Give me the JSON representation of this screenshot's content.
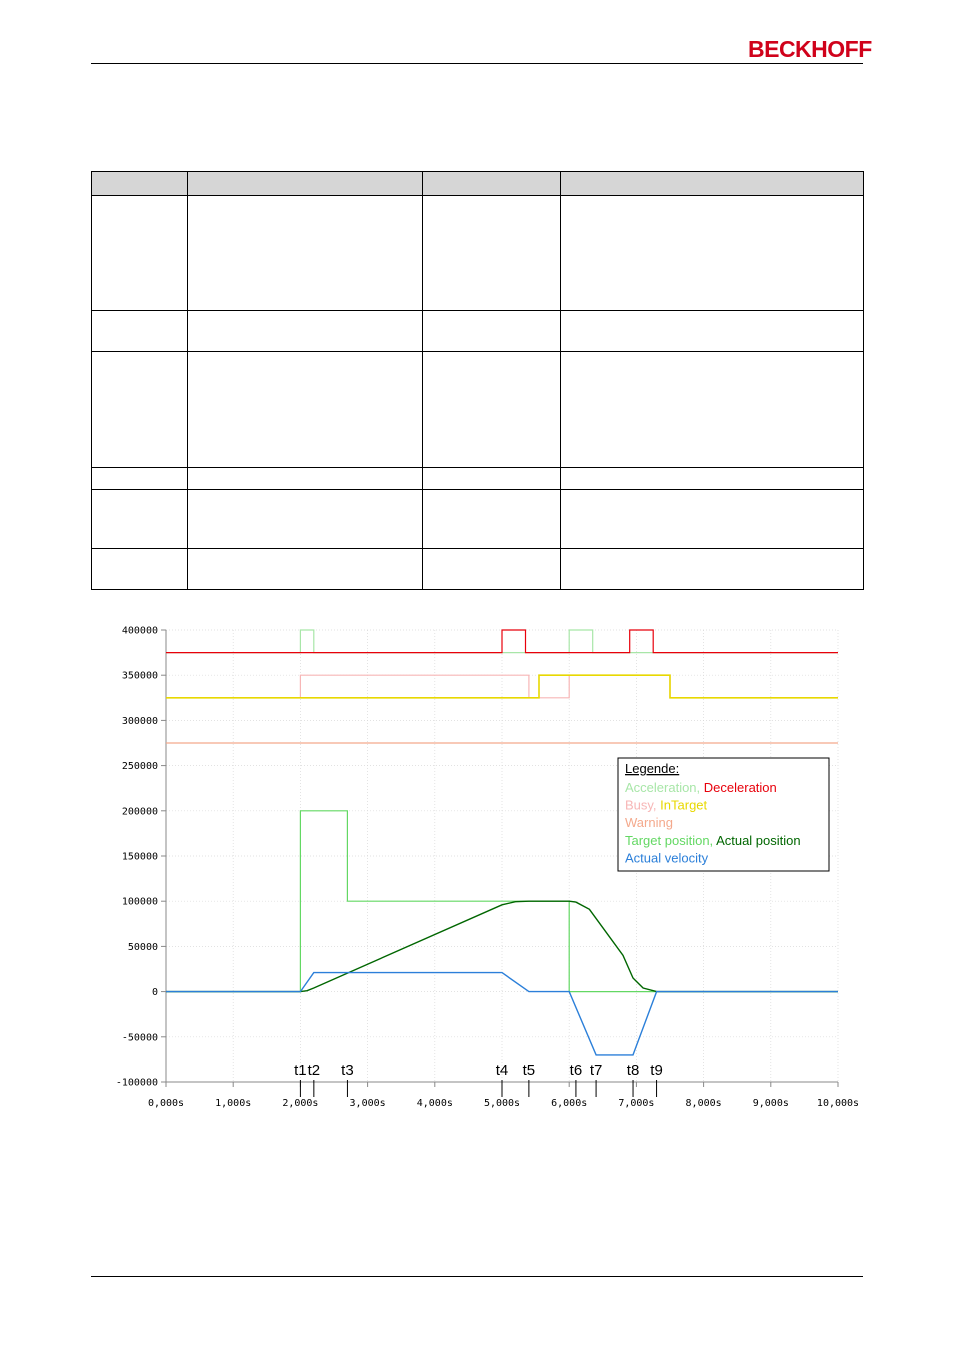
{
  "header": {
    "logo_text": "BECKHOFF",
    "brand_color": "#d0021b"
  },
  "table": {
    "column_count": 4,
    "row_count": 6,
    "header_background": "#d6d6d6"
  },
  "chart_data": {
    "type": "line",
    "xlabel": "",
    "ylabel": "",
    "xlim": [
      0,
      10
    ],
    "ylim": [
      -100000,
      400000
    ],
    "grid": true,
    "x_ticks": [
      0,
      1,
      2,
      3,
      4,
      5,
      6,
      7,
      8,
      9,
      10
    ],
    "x_tick_labels": [
      "0,000s",
      "1,000s",
      "2,000s",
      "3,000s",
      "4,000s",
      "5,000s",
      "6,000s",
      "7,000s",
      "8,000s",
      "9,000s",
      "10,000s"
    ],
    "y_ticks": [
      400000,
      350000,
      300000,
      250000,
      200000,
      150000,
      100000,
      50000,
      0,
      -50000,
      -100000
    ],
    "y_tick_labels": [
      "400000",
      "350000",
      "300000",
      "250000",
      "200000",
      "150000",
      "100000",
      "50000",
      "0",
      "-50000",
      "-100000"
    ],
    "legend": {
      "title": "Legende:",
      "placement": "right",
      "rows": [
        [
          {
            "text": "Acceleration,",
            "color": "#a8e6a8"
          },
          {
            "text": "Deceleration",
            "color": "#e8000b"
          }
        ],
        [
          {
            "text": "Busy,",
            "color": "#f7b6b6"
          },
          {
            "text": "InTarget",
            "color": "#e8d800"
          }
        ],
        [
          {
            "text": "Warning",
            "color": "#f4a98c"
          }
        ],
        [
          {
            "text": "Target position,",
            "color": "#63d863"
          },
          {
            "text": "Actual position",
            "color": "#006600"
          }
        ],
        [
          {
            "text": "Actual velocity",
            "color": "#2b7fd9"
          }
        ]
      ]
    },
    "markers": [
      {
        "label": "t1",
        "x": 2.0
      },
      {
        "label": "t2",
        "x": 2.2
      },
      {
        "label": "t3",
        "x": 2.7
      },
      {
        "label": "t4",
        "x": 5.0
      },
      {
        "label": "t5",
        "x": 5.4
      },
      {
        "label": "t6",
        "x": 6.1
      },
      {
        "label": "t7",
        "x": 6.4
      },
      {
        "label": "t8",
        "x": 6.95
      },
      {
        "label": "t9",
        "x": 7.3
      }
    ],
    "series": [
      {
        "name": "Warning",
        "color": "#f4a98c",
        "width": 1.2,
        "points": [
          [
            0,
            275000
          ],
          [
            10,
            275000
          ]
        ]
      },
      {
        "name": "Busy",
        "color": "#f7b6b6",
        "width": 1.2,
        "points": [
          [
            0,
            325000
          ],
          [
            2.0,
            325000
          ],
          [
            2.0,
            350000
          ],
          [
            5.4,
            350000
          ],
          [
            5.4,
            325000
          ],
          [
            6.0,
            325000
          ],
          [
            6.0,
            350000
          ],
          [
            7.5,
            350000
          ],
          [
            7.5,
            325000
          ],
          [
            10,
            325000
          ]
        ]
      },
      {
        "name": "InTarget",
        "color": "#e8d800",
        "width": 1.6,
        "points": [
          [
            0,
            325000
          ],
          [
            5.55,
            325000
          ],
          [
            5.55,
            350000
          ],
          [
            7.5,
            350000
          ],
          [
            7.5,
            325000
          ],
          [
            10,
            325000
          ]
        ]
      },
      {
        "name": "Acceleration",
        "color": "#a8e6a8",
        "width": 1.2,
        "points": [
          [
            0,
            375000
          ],
          [
            2.0,
            375000
          ],
          [
            2.0,
            400000
          ],
          [
            2.2,
            400000
          ],
          [
            2.2,
            375000
          ],
          [
            6.0,
            375000
          ],
          [
            6.0,
            400000
          ],
          [
            6.35,
            400000
          ],
          [
            6.35,
            375000
          ],
          [
            10,
            375000
          ]
        ]
      },
      {
        "name": "Deceleration",
        "color": "#e8000b",
        "width": 1.2,
        "points": [
          [
            0,
            375000
          ],
          [
            5.0,
            375000
          ],
          [
            5.0,
            400000
          ],
          [
            5.35,
            400000
          ],
          [
            5.35,
            375000
          ],
          [
            6.9,
            375000
          ],
          [
            6.9,
            400000
          ],
          [
            7.25,
            400000
          ],
          [
            7.25,
            375000
          ],
          [
            10,
            375000
          ]
        ]
      },
      {
        "name": "Target position",
        "color": "#63d863",
        "width": 1.2,
        "points": [
          [
            0,
            0
          ],
          [
            2.0,
            0
          ],
          [
            2.0,
            200000
          ],
          [
            2.7,
            200000
          ],
          [
            2.7,
            100000
          ],
          [
            6.0,
            100000
          ],
          [
            6.0,
            0
          ],
          [
            10,
            0
          ]
        ]
      },
      {
        "name": "Actual position",
        "color": "#006600",
        "width": 1.4,
        "points": [
          [
            0,
            0
          ],
          [
            2.0,
            0
          ],
          [
            2.1,
            1000
          ],
          [
            2.2,
            4000
          ],
          [
            5.0,
            96000
          ],
          [
            5.2,
            99500
          ],
          [
            5.4,
            100000
          ],
          [
            6.0,
            100000
          ],
          [
            6.1,
            99000
          ],
          [
            6.3,
            91000
          ],
          [
            6.8,
            40000
          ],
          [
            6.95,
            15000
          ],
          [
            7.1,
            4000
          ],
          [
            7.3,
            0
          ],
          [
            10,
            0
          ]
        ]
      },
      {
        "name": "Actual velocity",
        "color": "#2b7fd9",
        "width": 1.4,
        "points": [
          [
            0,
            0
          ],
          [
            2.0,
            0
          ],
          [
            2.2,
            21000
          ],
          [
            5.0,
            21000
          ],
          [
            5.4,
            0
          ],
          [
            6.0,
            0
          ],
          [
            6.4,
            -70000
          ],
          [
            6.95,
            -70000
          ],
          [
            7.3,
            0
          ],
          [
            10,
            0
          ]
        ]
      }
    ]
  }
}
